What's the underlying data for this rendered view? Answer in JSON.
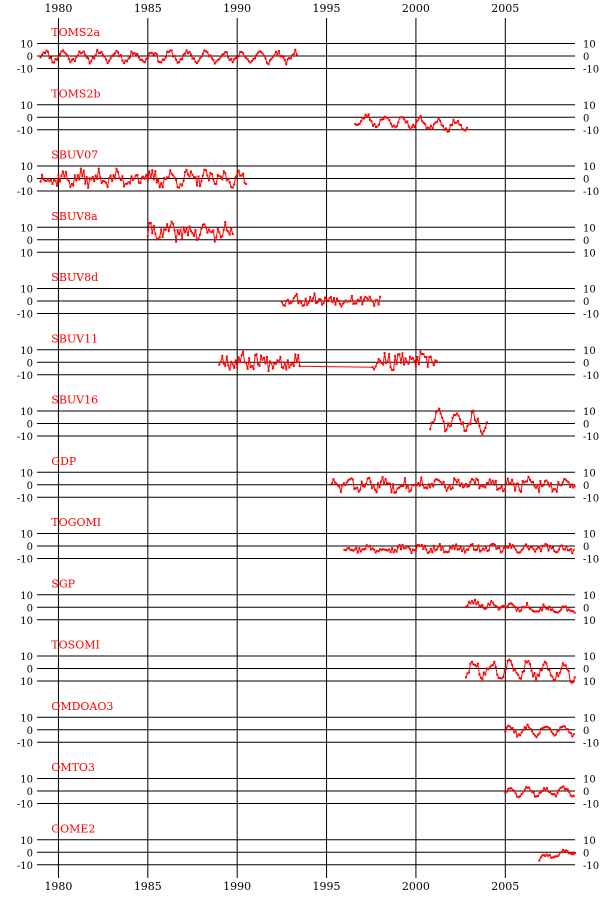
{
  "chart_data": {
    "type": "line",
    "x_axis": {
      "tick_labels": [
        "1980",
        "1985",
        "1990",
        "1995",
        "2000",
        "2005"
      ],
      "range": [
        1978.8,
        2008.9
      ]
    },
    "y_tick_labels": [
      "10",
      "0",
      "-10"
    ],
    "y_tick_labels_alt": [
      "10",
      "0",
      "10"
    ],
    "ylim": [
      -10,
      10
    ],
    "grid": true,
    "line_color": "#ff0000",
    "panels": [
      {
        "label": "TOMS2a",
        "x_range": [
          1979.0,
          1993.4
        ],
        "amplitude": 4,
        "trend": -1,
        "noise": 2,
        "offset": 0,
        "seed": 11
      },
      {
        "label": "TOMS2b",
        "x_range": [
          1996.6,
          2002.9
        ],
        "amplitude": 4,
        "trend": -5,
        "noise": 2,
        "offset": -2,
        "seed": 23
      },
      {
        "label": "SBUV07",
        "x_range": [
          1979.0,
          1990.5
        ],
        "amplitude": 3,
        "trend": 0,
        "noise": 5,
        "offset": 0,
        "seed": 37
      },
      {
        "label": "SBUV8a",
        "x_range": [
          1985.0,
          1989.8
        ],
        "amplitude": 3,
        "trend": 0,
        "noise": 6,
        "offset": 6,
        "seed": 41
      },
      {
        "label": "SBUV8d",
        "x_range": [
          1992.5,
          1998.0
        ],
        "amplitude": 2,
        "trend": 0,
        "noise": 4,
        "offset": 1,
        "seed": 53
      },
      {
        "label": "SBUV11",
        "x_range": [
          1989.0,
          2001.2
        ],
        "amplitude": 2,
        "trend": 0,
        "noise": 6,
        "offset": 1,
        "seed": 67,
        "gap": [
          1993.5,
          1997.5
        ]
      },
      {
        "label": "SBUV16",
        "x_range": [
          2000.8,
          2004.0
        ],
        "amplitude": 6,
        "trend": -3,
        "noise": 4,
        "offset": 3,
        "seed": 71
      },
      {
        "label": "GDP",
        "x_range": [
          1995.3,
          2008.9
        ],
        "amplitude": 3,
        "trend": 0,
        "noise": 4,
        "offset": 0,
        "seed": 83
      },
      {
        "label": "TOGOMI",
        "x_range": [
          1996.0,
          2008.9
        ],
        "amplitude": 1.5,
        "trend": 0,
        "noise": 2.5,
        "offset": -2,
        "seed": 97
      },
      {
        "label": "SGP",
        "x_range": [
          2002.8,
          2008.9
        ],
        "amplitude": 2,
        "trend": -6,
        "noise": 2,
        "offset": 3,
        "seed": 101
      },
      {
        "label": "TOSOMI",
        "x_range": [
          2002.8,
          2008.9
        ],
        "amplitude": 6,
        "trend": -3,
        "noise": 3,
        "offset": 0,
        "seed": 113
      },
      {
        "label": "OMDOAO3",
        "x_range": [
          2005.0,
          2008.9
        ],
        "amplitude": 4,
        "trend": 1,
        "noise": 1.5,
        "offset": -1,
        "seed": 127
      },
      {
        "label": "OMTO3",
        "x_range": [
          2005.0,
          2008.9
        ],
        "amplitude": 3,
        "trend": 1,
        "noise": 1.5,
        "offset": -1,
        "seed": 131
      },
      {
        "label": "GOME2",
        "x_range": [
          2006.9,
          2008.9
        ],
        "amplitude": 2,
        "trend": 6,
        "noise": 1,
        "offset": -5,
        "seed": 139
      }
    ]
  }
}
